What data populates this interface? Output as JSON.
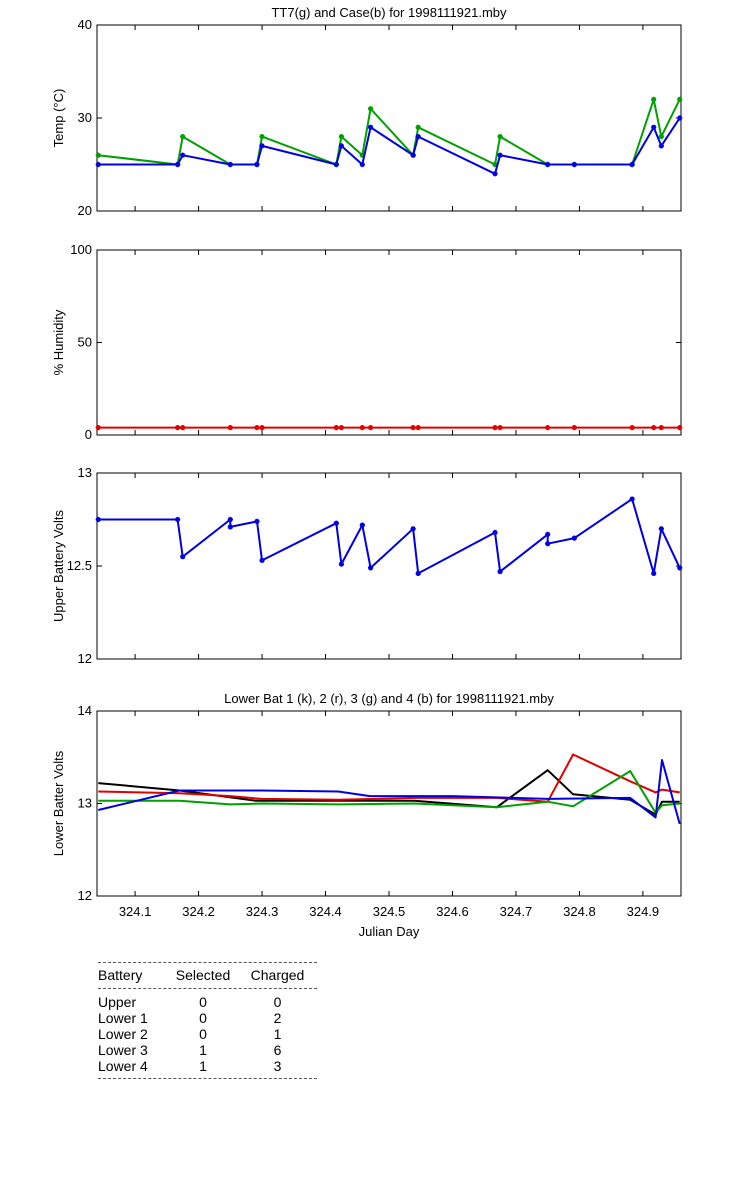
{
  "chart_data": [
    {
      "type": "line",
      "title": "TT7(g) and Case(b) for 1998111921.mby",
      "xlabel": "",
      "ylabel": "Temp  (°C)",
      "xlim": [
        324.04,
        324.96
      ],
      "ylim": [
        20,
        40
      ],
      "yticks": [
        20,
        30,
        40
      ],
      "grid": false,
      "markers": true,
      "series": [
        {
          "color": "#00a000",
          "x": [
            324.042,
            324.167,
            324.175,
            324.25,
            324.292,
            324.3,
            324.417,
            324.425,
            324.458,
            324.471,
            324.538,
            324.546,
            324.667,
            324.675,
            324.75,
            324.792,
            324.883,
            324.917,
            324.929,
            324.958
          ],
          "y": [
            26,
            25,
            28,
            25,
            25,
            28,
            25,
            28,
            26,
            31,
            26,
            29,
            25,
            28,
            25,
            25,
            25,
            32,
            28,
            32
          ]
        },
        {
          "color": "#0000e0",
          "x": [
            324.042,
            324.167,
            324.175,
            324.25,
            324.292,
            324.3,
            324.417,
            324.425,
            324.458,
            324.471,
            324.538,
            324.546,
            324.667,
            324.675,
            324.75,
            324.792,
            324.883,
            324.917,
            324.929,
            324.958
          ],
          "y": [
            25,
            25,
            26,
            25,
            25,
            27,
            25,
            27,
            25,
            29,
            26,
            28,
            24,
            26,
            25,
            25,
            25,
            29,
            27,
            30
          ]
        }
      ]
    },
    {
      "type": "line",
      "title": "",
      "xlabel": "",
      "ylabel": "% Humidity",
      "xlim": [
        324.04,
        324.96
      ],
      "ylim": [
        0,
        100
      ],
      "yticks": [
        0,
        50,
        100
      ],
      "grid": false,
      "markers": true,
      "series": [
        {
          "color": "#e00000",
          "x": [
            324.042,
            324.167,
            324.175,
            324.25,
            324.292,
            324.3,
            324.417,
            324.425,
            324.458,
            324.471,
            324.538,
            324.546,
            324.667,
            324.675,
            324.75,
            324.792,
            324.883,
            324.917,
            324.929,
            324.958
          ],
          "y": [
            4,
            4,
            4,
            4,
            4,
            4,
            4,
            4,
            4,
            4,
            4,
            4,
            4,
            4,
            4,
            4,
            4,
            4,
            4,
            4
          ]
        }
      ]
    },
    {
      "type": "line",
      "title": "",
      "xlabel": "",
      "ylabel": "Upper Battery Volts",
      "xlim": [
        324.04,
        324.96
      ],
      "ylim": [
        12,
        13
      ],
      "yticks": [
        12,
        12.5,
        13
      ],
      "grid": false,
      "markers": true,
      "series": [
        {
          "color": "#0000e0",
          "x": [
            324.042,
            324.167,
            324.175,
            324.25,
            324.25,
            324.292,
            324.3,
            324.417,
            324.425,
            324.458,
            324.471,
            324.538,
            324.546,
            324.667,
            324.675,
            324.75,
            324.75,
            324.792,
            324.883,
            324.917,
            324.929,
            324.958
          ],
          "y": [
            12.75,
            12.75,
            12.55,
            12.75,
            12.71,
            12.74,
            12.53,
            12.73,
            12.51,
            12.72,
            12.49,
            12.7,
            12.46,
            12.68,
            12.47,
            12.67,
            12.62,
            12.65,
            12.86,
            12.46,
            12.7,
            12.49
          ]
        }
      ]
    },
    {
      "type": "line",
      "title": "Lower Bat 1 (k), 2 (r), 3 (g) and 4 (b) for 1998111921.mby",
      "xlabel": "Julian Day",
      "ylabel": "Lower Batter Volts",
      "xlim": [
        324.04,
        324.96
      ],
      "ylim": [
        12,
        14
      ],
      "yticks": [
        12,
        13,
        14
      ],
      "xticks": [
        324.1,
        324.2,
        324.3,
        324.4,
        324.5,
        324.6,
        324.7,
        324.8,
        324.9
      ],
      "grid": false,
      "markers": false,
      "series": [
        {
          "color": "#000000",
          "x": [
            324.042,
            324.17,
            324.29,
            324.42,
            324.54,
            324.67,
            324.75,
            324.79,
            324.88,
            324.92,
            324.93,
            324.958
          ],
          "y": [
            13.22,
            13.14,
            13.03,
            13.03,
            13.03,
            12.96,
            13.36,
            13.1,
            13.04,
            12.88,
            13.02,
            13.02
          ]
        },
        {
          "color": "#e00000",
          "x": [
            324.042,
            324.17,
            324.25,
            324.3,
            324.42,
            324.54,
            324.67,
            324.75,
            324.79,
            324.88,
            324.92,
            324.93,
            324.958
          ],
          "y": [
            13.13,
            13.11,
            13.08,
            13.05,
            13.04,
            13.06,
            13.06,
            13.02,
            13.53,
            13.24,
            13.12,
            13.15,
            13.12
          ]
        },
        {
          "color": "#00a000",
          "x": [
            324.042,
            324.17,
            324.25,
            324.3,
            324.42,
            324.54,
            324.67,
            324.75,
            324.79,
            324.88,
            324.92,
            324.93,
            324.958
          ],
          "y": [
            13.03,
            13.03,
            12.99,
            13.0,
            12.99,
            13.0,
            12.96,
            13.02,
            12.97,
            13.35,
            12.9,
            12.98,
            13.0
          ]
        },
        {
          "color": "#0000e0",
          "x": [
            324.042,
            324.17,
            324.3,
            324.42,
            324.47,
            324.6,
            324.75,
            324.88,
            324.92,
            324.93,
            324.958
          ],
          "y": [
            12.93,
            13.14,
            13.14,
            13.13,
            13.08,
            13.08,
            13.05,
            13.06,
            12.85,
            13.47,
            12.78
          ]
        }
      ]
    }
  ],
  "stats_table": {
    "headers": [
      "Battery",
      "Selected",
      "Charged"
    ],
    "rows": [
      [
        "Upper",
        "0",
        "0"
      ],
      [
        "Lower 1",
        "0",
        "2"
      ],
      [
        "Lower 2",
        "0",
        "1"
      ],
      [
        "Lower 3",
        "1",
        "6"
      ],
      [
        "Lower 4",
        "1",
        "3"
      ]
    ]
  }
}
